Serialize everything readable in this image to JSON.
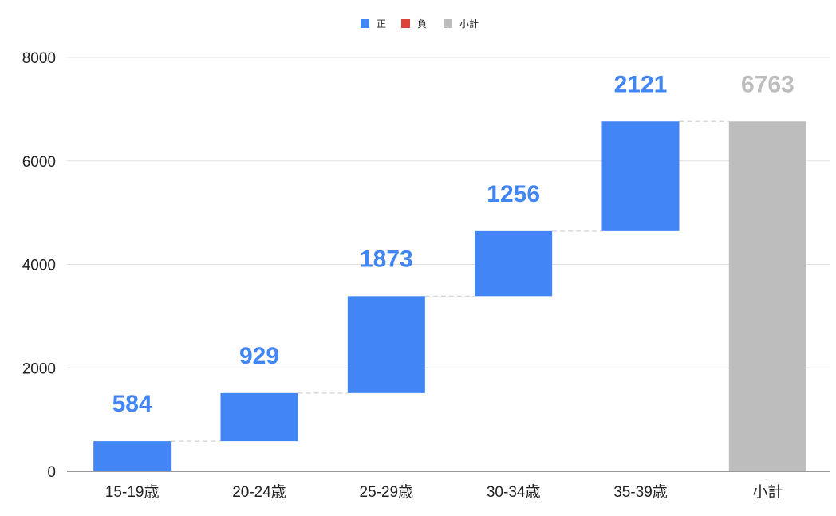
{
  "chart_data": {
    "type": "bar",
    "subtype": "waterfall",
    "title": "",
    "xlabel": "",
    "ylabel": "",
    "ylim": [
      0,
      8000
    ],
    "yticks": [
      0,
      2000,
      4000,
      6000,
      8000
    ],
    "grid": true,
    "legend_position": "top",
    "legend": [
      {
        "name": "正",
        "color": "#4285F4"
      },
      {
        "name": "負",
        "color": "#DB4437"
      },
      {
        "name": "小計",
        "color": "#BDBDBD"
      }
    ],
    "categories": [
      "15-19歳",
      "20-24歳",
      "25-29歳",
      "30-34歳",
      "35-39歳",
      "小計"
    ],
    "values": [
      584,
      929,
      1873,
      1256,
      2121,
      6763
    ],
    "kinds": [
      "positive",
      "positive",
      "positive",
      "positive",
      "positive",
      "subtotal"
    ],
    "data_labels": [
      "584",
      "929",
      "1873",
      "1256",
      "2121",
      "6763"
    ],
    "colors": {
      "positive": "#4285F4",
      "negative": "#DB4437",
      "subtotal": "#BDBDBD",
      "grid": "#E0E0E0",
      "axis": "#333333",
      "connector": "#D9D9D9"
    }
  }
}
